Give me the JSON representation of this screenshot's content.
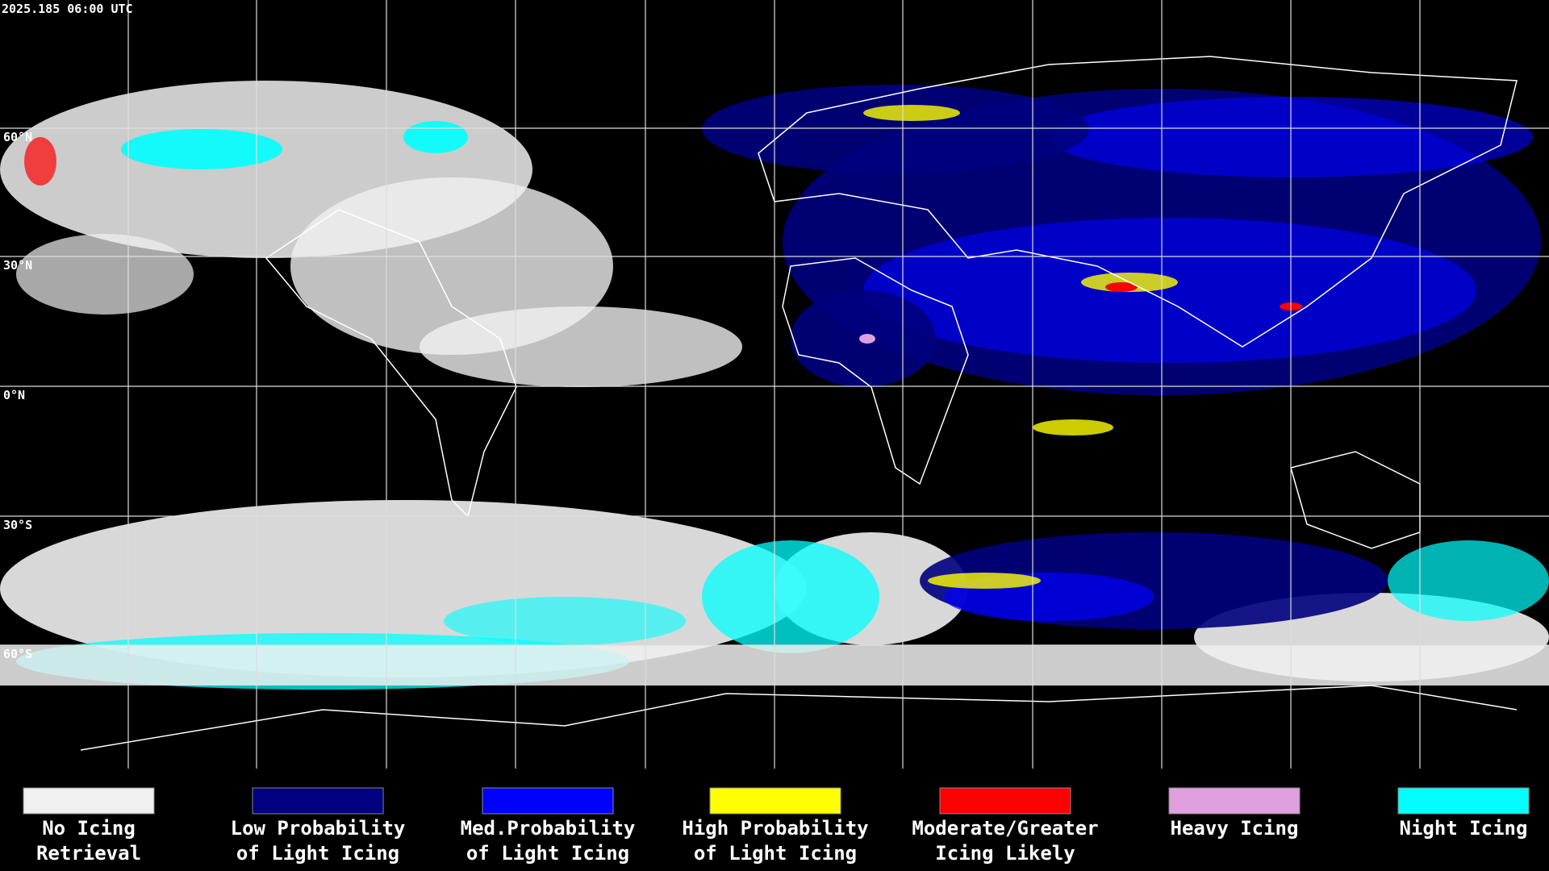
{
  "header": {
    "timestamp": "2025.185 06:00 UTC"
  },
  "latitude_labels": [
    "60°N",
    "30°N",
    "0°N",
    "30°S",
    "60°S"
  ],
  "legend": [
    {
      "lines": [
        "No Icing",
        "Retrieval"
      ],
      "color": "#f0f0f0"
    },
    {
      "lines": [
        "Low Probability",
        "of Light Icing"
      ],
      "color": "#000080"
    },
    {
      "lines": [
        "Med.Probability",
        "of Light Icing"
      ],
      "color": "#0000ff"
    },
    {
      "lines": [
        "High Probability",
        "of Light Icing"
      ],
      "color": "#ffff00"
    },
    {
      "lines": [
        "Moderate/Greater",
        "Icing Likely"
      ],
      "color": "#ff0000"
    },
    {
      "lines": [
        "Heavy Icing"
      ],
      "color": "#e0a0e0"
    },
    {
      "lines": [
        "Night Icing"
      ],
      "color": "#00ffff"
    }
  ]
}
